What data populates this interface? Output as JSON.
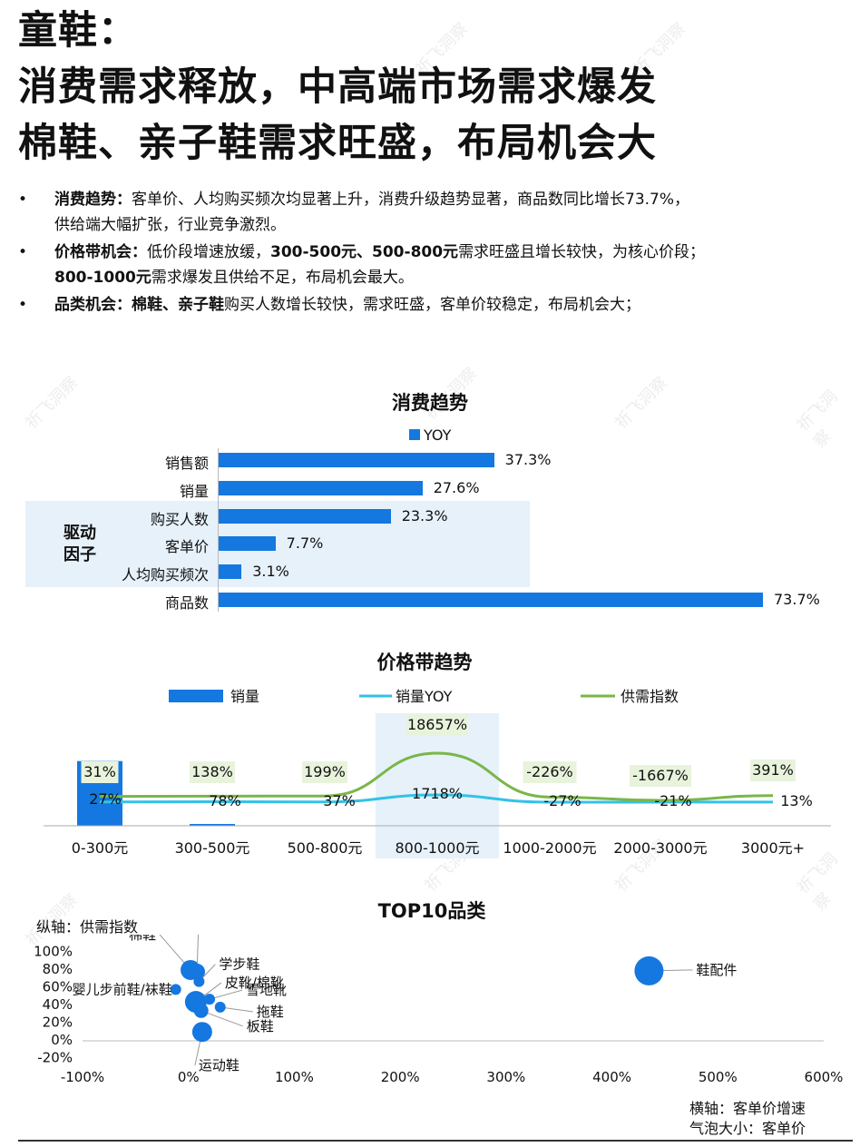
{
  "title_lines": [
    "童鞋：",
    "消费需求释放，中高端市场需求爆发",
    "棉鞋、亲子鞋需求旺盛，布局机会大"
  ],
  "bullets": [
    {
      "head": "消费趋势：",
      "line1": "客单价、人均购买频次均显著上升，消费升级趋势显著，商品数同比增长73.7%，",
      "line2": "供给端大幅扩张，行业竞争激烈。"
    },
    {
      "head": "价格带机会：",
      "line1a": "低价段增速放缓，",
      "line1b": "300-500元、500-800元",
      "line1c": "需求旺盛且增长较快，为核心价段；",
      "line2a": "800-1000元",
      "line2b": "需求爆发且供给不足，布局机会最大。"
    },
    {
      "head": "品类机会：",
      "line1a": "棉鞋、亲子鞋",
      "line1b": "购买人数增长较快，需求旺盛，客单价较稳定，布局机会大；"
    }
  ],
  "bullet_symbol": "•",
  "watermark": "祈飞洞察",
  "colors": {
    "bar": "#1478e0",
    "line_yoy": "#33c2e6",
    "line_supply": "#7ab648",
    "highlight": "#e6f1fa",
    "label_bg": "#e8f3dc"
  },
  "chart_data": [
    {
      "type": "bar",
      "title": "消费趋势",
      "legend": [
        "YOY"
      ],
      "categories": [
        "销售额",
        "销量",
        "购买人数",
        "客单价",
        "人均购买频次",
        "商品数"
      ],
      "values": [
        37.3,
        27.6,
        23.3,
        7.7,
        3.1,
        73.7
      ],
      "value_labels": [
        "37.3%",
        "27.6%",
        "23.3%",
        "7.7%",
        "3.1%",
        "73.7%"
      ],
      "group_label": "驱动因子"
    },
    {
      "type": "bar",
      "title": "价格带趋势",
      "legend": [
        "销量",
        "销量YOY",
        "供需指数"
      ],
      "categories": [
        "0-300元",
        "300-500元",
        "500-800元",
        "800-1000元",
        "1000-2000元",
        "2000-3000元",
        "3000元+"
      ],
      "share_values": [
        31,
        0.5,
        0,
        0,
        0,
        0,
        0
      ],
      "yoy": [
        27,
        78,
        37,
        1718,
        -27,
        -21,
        13
      ],
      "supply_demand": [
        31,
        138,
        199,
        18657,
        -226,
        -1667,
        391
      ],
      "yoy_labels": [
        "27%",
        "78%",
        "37%",
        "1718%",
        "-27%",
        "-21%",
        "13%"
      ],
      "supply_demand_labels": [
        "31%",
        "138%",
        "199%",
        "18657%",
        "-226%",
        "-1667%",
        "391%"
      ],
      "highlight_category": "800-1000元"
    },
    {
      "type": "scatter",
      "title": "TOP10品类",
      "ylabel": "纵轴：供需指数",
      "xlabel": "横轴：客单价增速",
      "size_label": "气泡大小：客单价",
      "xlim": [
        -100,
        600
      ],
      "ylim": [
        -20,
        100
      ],
      "x_ticks": [
        "-100%",
        "0%",
        "100%",
        "200%",
        "300%",
        "400%",
        "500%",
        "600%"
      ],
      "y_ticks": [
        "100%",
        "80%",
        "60%",
        "40%",
        "20%",
        "0%",
        "-20%"
      ],
      "points": [
        {
          "name": "棉鞋",
          "x": 2,
          "y": 78,
          "size": 11
        },
        {
          "name": "亲子鞋",
          "x": 8,
          "y": 76,
          "size": 9
        },
        {
          "name": "学步鞋",
          "x": 10,
          "y": 65,
          "size": 6
        },
        {
          "name": "婴儿步前鞋/袜鞋",
          "x": -12,
          "y": 56,
          "size": 6
        },
        {
          "name": "皮靴/棉靴",
          "x": 7,
          "y": 42,
          "size": 12
        },
        {
          "name": "雪地靴",
          "x": 20,
          "y": 45,
          "size": 6
        },
        {
          "name": "拖鞋",
          "x": 30,
          "y": 36,
          "size": 6
        },
        {
          "name": "板鞋",
          "x": 12,
          "y": 32,
          "size": 8
        },
        {
          "name": "运动鞋",
          "x": 13,
          "y": 8,
          "size": 11
        },
        {
          "name": "鞋配件",
          "x": 435,
          "y": 77,
          "size": 16
        }
      ]
    }
  ]
}
